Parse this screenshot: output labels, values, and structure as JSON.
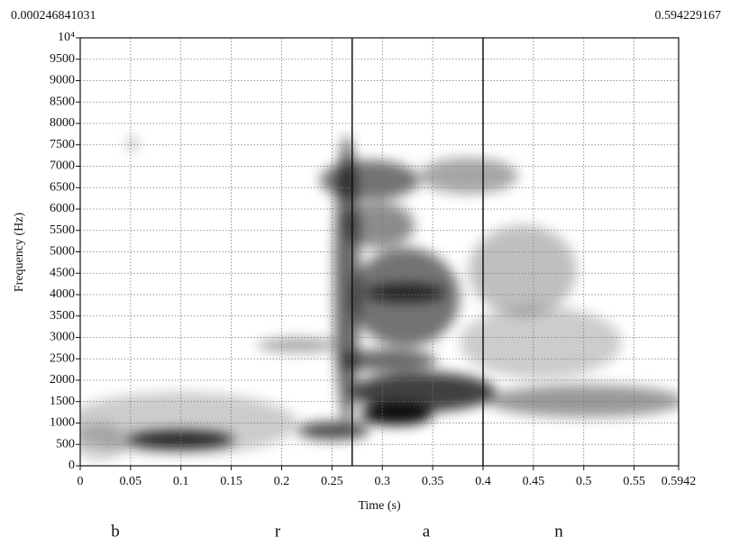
{
  "chart_data": {
    "type": "spectrogram",
    "x_axis_label": "Time (s)",
    "y_axis_label": "Frequency (Hz)",
    "start_time_label": "0.000246841031",
    "end_time_label": "0.594229167",
    "xlim": [
      0,
      0.5942
    ],
    "xticks": [
      0,
      0.05,
      0.1,
      0.15,
      0.2,
      0.25,
      0.3,
      0.35,
      0.4,
      0.45,
      0.5,
      0.55,
      0.5942
    ],
    "ylim": [
      0,
      10000
    ],
    "yticks": [
      0,
      500,
      1000,
      1500,
      2000,
      2500,
      3000,
      3500,
      4000,
      4500,
      5000,
      5500,
      6000,
      6500,
      7000,
      7500,
      8000,
      8500,
      9000,
      9500,
      {
        "value": 10000,
        "label": "10⁴"
      }
    ],
    "grid": true,
    "boundaries": [
      0.27,
      0.4
    ],
    "segments": [
      "b",
      "r",
      "a",
      "n"
    ]
  }
}
